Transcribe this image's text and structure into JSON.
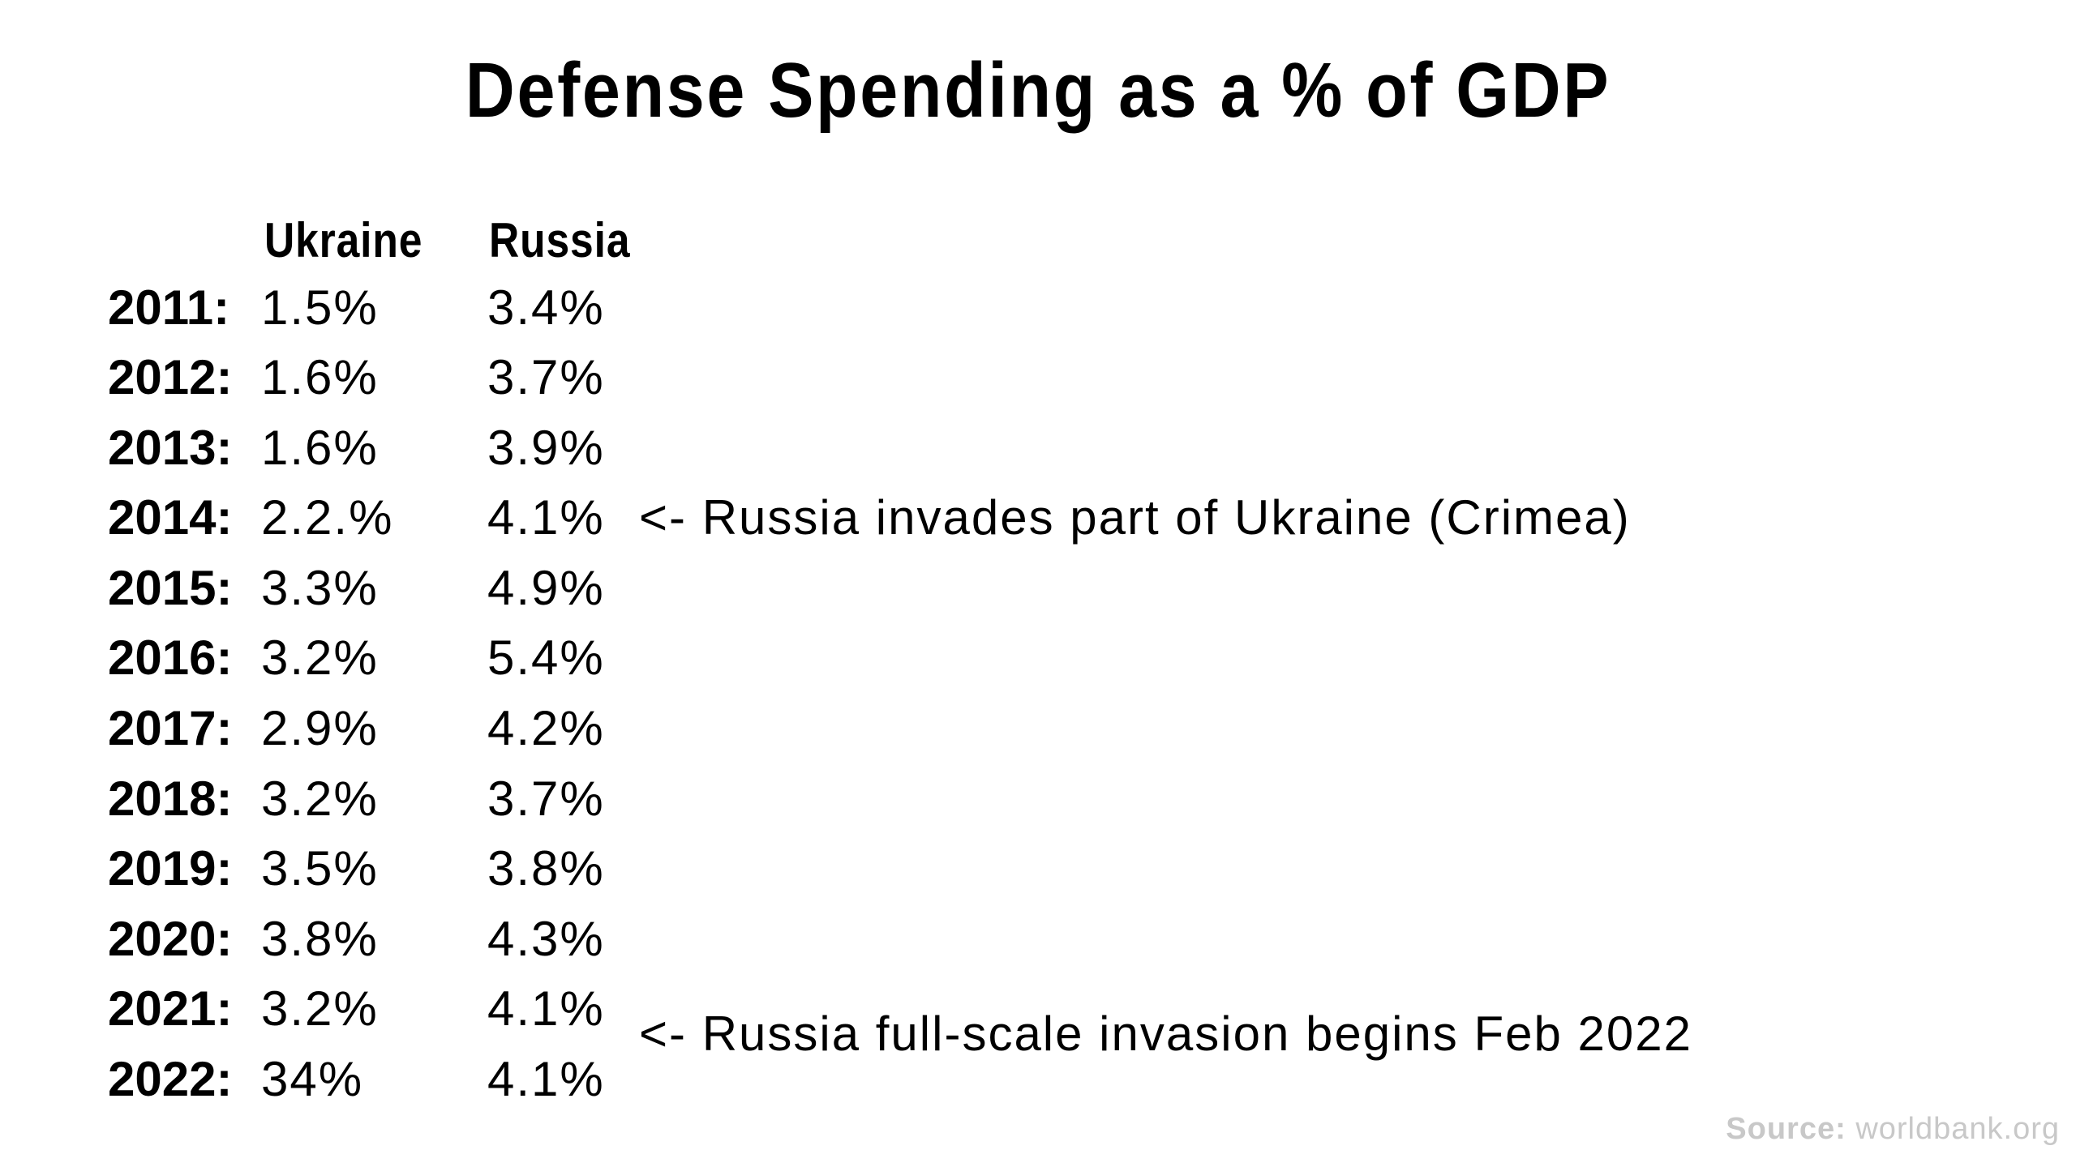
{
  "title": "Defense Spending as a % of GDP",
  "columns": {
    "ukraine": "Ukraine",
    "russia": "Russia"
  },
  "rows": [
    {
      "year": "2011:",
      "ukraine": "1.5%",
      "russia": "3.4%"
    },
    {
      "year": "2012:",
      "ukraine": "1.6%",
      "russia": "3.7%"
    },
    {
      "year": "2013:",
      "ukraine": "1.6%",
      "russia": "3.9%"
    },
    {
      "year": "2014:",
      "ukraine": "2.2.%",
      "russia": "4.1%"
    },
    {
      "year": "2015:",
      "ukraine": "3.3%",
      "russia": "4.9%"
    },
    {
      "year": "2016:",
      "ukraine": "3.2%",
      "russia": "5.4%"
    },
    {
      "year": "2017:",
      "ukraine": "2.9%",
      "russia": "4.2%"
    },
    {
      "year": "2018:",
      "ukraine": "3.2%",
      "russia": "3.7%"
    },
    {
      "year": "2019:",
      "ukraine": "3.5%",
      "russia": "3.8%"
    },
    {
      "year": "2020:",
      "ukraine": "3.8%",
      "russia": "4.3%"
    },
    {
      "year": "2021:",
      "ukraine": "3.2%",
      "russia": "4.1%"
    },
    {
      "year": "2022:",
      "ukraine": "34%",
      "russia": "4.1%"
    }
  ],
  "annotations": {
    "crimea": "<- Russia invades part of Ukraine (Crimea)",
    "full_scale": "<- Russia full-scale invasion begins Feb 2022"
  },
  "source": {
    "label": "Source:",
    "value": "worldbank.org"
  }
}
